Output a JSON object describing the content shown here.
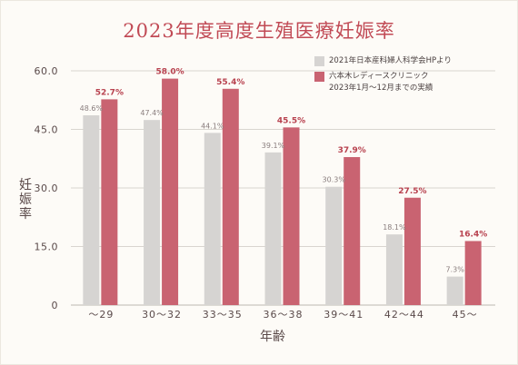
{
  "chart_data": {
    "type": "bar",
    "title": "2023年度高度生殖医療妊娠率",
    "xlabel": "年齢",
    "ylabel": "妊娠率",
    "ylim": [
      0,
      60
    ],
    "yticks": [
      "60.0",
      "45.0",
      "30.0",
      "15.0",
      "0"
    ],
    "categories": [
      "～29",
      "30～32",
      "33～35",
      "36～38",
      "39～41",
      "42～44",
      "45～"
    ],
    "series": [
      {
        "name": "2021年日本産科婦人科学会HPより",
        "color": "#d6d4d2",
        "values": [
          48.6,
          47.4,
          44.1,
          39.1,
          30.3,
          18.1,
          7.3
        ],
        "labels": [
          "48.6%",
          "47.4%",
          "44.1%",
          "39.1%",
          "30.3%",
          "18.1%",
          "7.3%"
        ]
      },
      {
        "name": "六本木レディースクリニック\n2023年1月～12月までの実績",
        "name_lines": [
          "六本木レディースクリニック",
          "2023年1月～12月までの実績"
        ],
        "color": "#c96371",
        "values": [
          52.7,
          58.0,
          55.4,
          45.5,
          37.9,
          27.5,
          16.4
        ],
        "labels": [
          "52.7%",
          "58.0%",
          "55.4%",
          "45.5%",
          "37.9%",
          "27.5%",
          "16.4%"
        ]
      }
    ],
    "grid": true,
    "legend": "top-right"
  }
}
